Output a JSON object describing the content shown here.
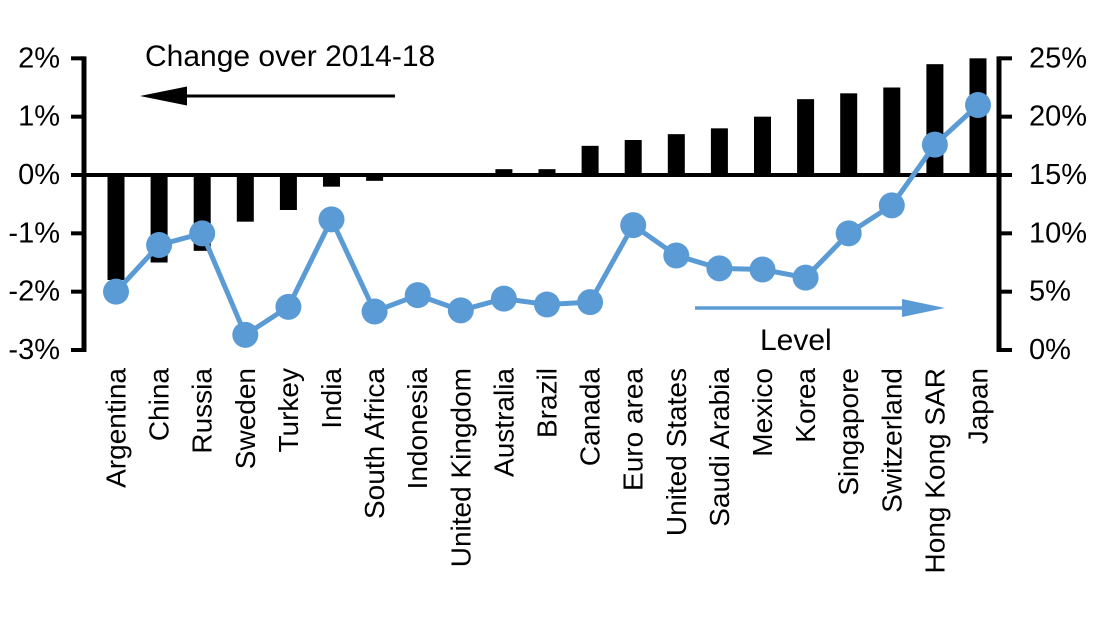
{
  "chart_data": {
    "type": "combo",
    "title": "",
    "categories": [
      "Argentina",
      "China",
      "Russia",
      "Sweden",
      "Turkey",
      "India",
      "South Africa",
      "Indonesia",
      "United Kingdom",
      "Australia",
      "Brazil",
      "Canada",
      "Euro area",
      "United States",
      "Saudi Arabia",
      "Mexico",
      "Korea",
      "Singapore",
      "Switzerland",
      "Hong Kong SAR",
      "Japan"
    ],
    "series": [
      {
        "name": "Change over 2014-18",
        "type": "bar",
        "axis": "left",
        "unit": "percentage points",
        "color": "#000000",
        "values": [
          -1.8,
          -1.5,
          -1.3,
          -0.8,
          -0.6,
          -0.2,
          -0.1,
          0,
          0,
          0.1,
          0.1,
          0.5,
          0.6,
          0.7,
          0.8,
          1.0,
          1.3,
          1.4,
          1.5,
          1.9,
          2.0
        ]
      },
      {
        "name": "Level",
        "type": "line",
        "axis": "right",
        "unit": "%",
        "color": "#5B9BD5",
        "values": [
          5.0,
          9.0,
          10.0,
          1.3,
          3.7,
          11.2,
          3.3,
          4.7,
          3.4,
          4.4,
          3.9,
          4.1,
          10.7,
          8.1,
          7.0,
          6.9,
          6.2,
          10.0,
          12.4,
          17.6,
          21.0
        ]
      }
    ],
    "left_axis": {
      "tick_labels": [
        "2%",
        "1%",
        "0%",
        "-1%",
        "-2%",
        "-3%"
      ],
      "tick_values": [
        2,
        1,
        0,
        -1,
        -2,
        -3
      ],
      "range": [
        -3,
        2
      ]
    },
    "right_axis": {
      "tick_labels": [
        "25%",
        "20%",
        "15%",
        "10%",
        "5%",
        "0%"
      ],
      "tick_values": [
        25,
        20,
        15,
        10,
        5,
        0
      ],
      "range": [
        0,
        25
      ]
    },
    "annotations": {
      "bar_series_label": "Change over 2014-18",
      "line_series_label": "Level",
      "bar_arrow_direction": "left",
      "line_arrow_direction": "right"
    },
    "grid": false,
    "legend_position": "in-plot annotations with arrows"
  },
  "colors": {
    "bar": "#000000",
    "line": "#5B9BD5",
    "axis": "#000000",
    "text": "#000000",
    "background": "#FFFFFF"
  }
}
